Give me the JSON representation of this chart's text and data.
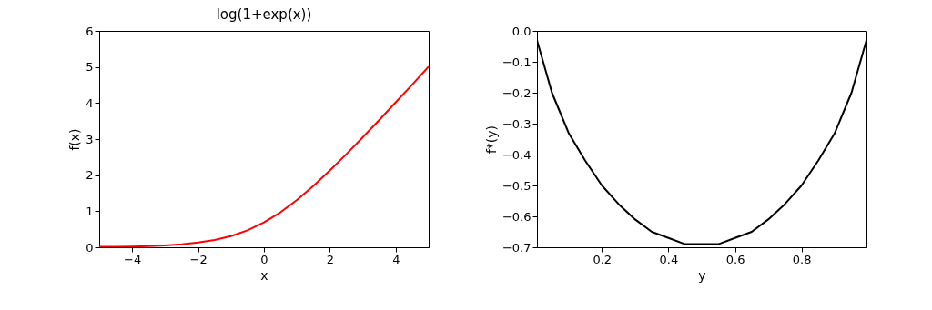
{
  "chart_data": [
    {
      "type": "line",
      "title": "log(1+exp(x))",
      "xlabel": "x",
      "ylabel": "f(x)",
      "x": [
        -5,
        -4.5,
        -4,
        -3.5,
        -3,
        -2.5,
        -2,
        -1.5,
        -1,
        -0.5,
        0,
        0.5,
        1,
        1.5,
        2,
        2.5,
        3,
        3.5,
        4,
        4.5,
        5
      ],
      "series": [
        {
          "color": "#ff0000",
          "values": [
            0.01,
            0.01,
            0.02,
            0.03,
            0.05,
            0.08,
            0.13,
            0.2,
            0.31,
            0.47,
            0.69,
            0.97,
            1.31,
            1.7,
            2.13,
            2.58,
            3.05,
            3.53,
            4.02,
            4.51,
            5.01
          ]
        }
      ],
      "xlim": [
        -5,
        5
      ],
      "ylim": [
        0,
        6
      ],
      "xticks": [
        -4,
        -2,
        0,
        2,
        4
      ],
      "yticks": [
        0,
        1,
        2,
        3,
        4,
        5,
        6
      ],
      "grid": false,
      "line_style": "solid"
    },
    {
      "type": "line",
      "xlabel": "y",
      "ylabel": "f*(y)",
      "x": [
        0.005,
        0.05,
        0.1,
        0.15,
        0.2,
        0.25,
        0.3,
        0.35,
        0.4,
        0.45,
        0.5,
        0.55,
        0.6,
        0.65,
        0.7,
        0.75,
        0.8,
        0.85,
        0.9,
        0.95,
        0.995
      ],
      "series": [
        {
          "color": "#000000",
          "values": [
            -0.03,
            -0.2,
            -0.33,
            -0.42,
            -0.5,
            -0.56,
            -0.61,
            -0.65,
            -0.67,
            -0.69,
            -0.69,
            -0.69,
            -0.67,
            -0.65,
            -0.61,
            -0.56,
            -0.5,
            -0.42,
            -0.33,
            -0.2,
            -0.03
          ]
        }
      ],
      "xlim": [
        0.005,
        0.995
      ],
      "ylim": [
        -0.7,
        0.0
      ],
      "xticks": [
        0.2,
        0.4,
        0.6,
        0.8
      ],
      "yticks": [
        {
          "value": 0,
          "label": "0.0"
        },
        {
          "value": -0.1,
          "label": "−0.1"
        },
        {
          "value": -0.2,
          "label": "−0.2"
        },
        {
          "value": -0.3,
          "label": "−0.3"
        },
        {
          "value": -0.4,
          "label": "−0.4"
        },
        {
          "value": -0.5,
          "label": "−0.5"
        },
        {
          "value": -0.6,
          "label": "−0.6"
        },
        {
          "value": -0.7,
          "label": "−0.7"
        }
      ],
      "grid": false,
      "line_style": "solid"
    }
  ]
}
